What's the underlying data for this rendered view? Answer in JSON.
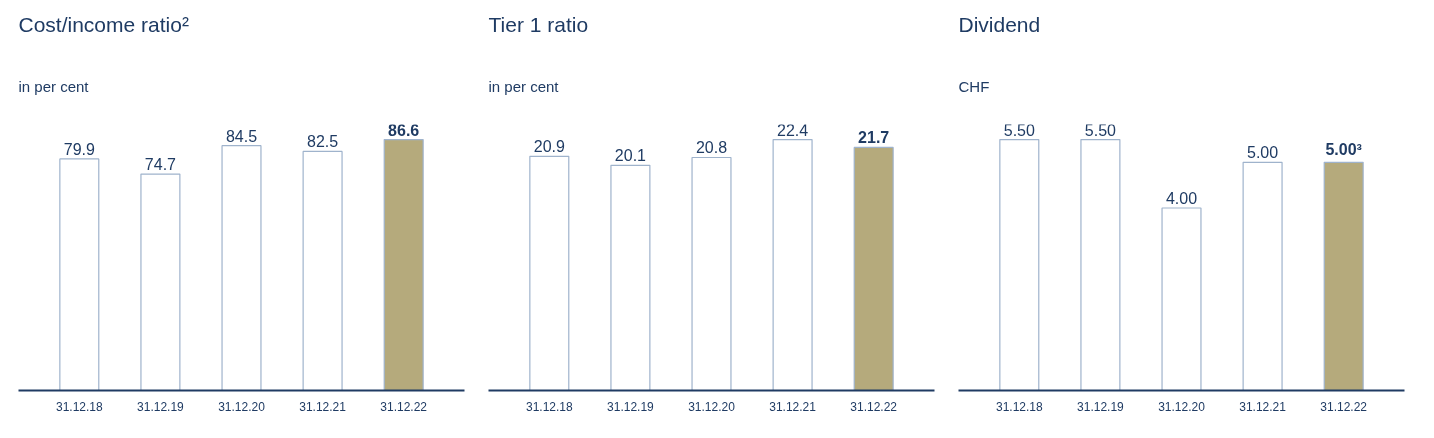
{
  "chart_data": [
    {
      "type": "bar",
      "title": "Cost/income ratio²",
      "subtitle": "in per cent",
      "categories": [
        "31.12.18",
        "31.12.19",
        "31.12.20",
        "31.12.21",
        "31.12.22"
      ],
      "values": [
        79.9,
        74.7,
        84.5,
        82.5,
        86.6
      ],
      "value_labels": [
        "79.9",
        "74.7",
        "84.5",
        "82.5",
        "86.6"
      ],
      "colors": [
        "#ffffff",
        "#ffffff",
        "#ffffff",
        "#ffffff",
        "#b5aa7c"
      ]
    },
    {
      "type": "bar",
      "title": "Tier 1 ratio",
      "subtitle": "in per cent",
      "categories": [
        "31.12.18",
        "31.12.19",
        "31.12.20",
        "31.12.21",
        "31.12.22"
      ],
      "values": [
        20.9,
        20.1,
        20.8,
        22.4,
        21.7
      ],
      "value_labels": [
        "20.9",
        "20.1",
        "20.8",
        "22.4",
        "21.7"
      ],
      "colors": [
        "#ffffff",
        "#ffffff",
        "#ffffff",
        "#ffffff",
        "#b5aa7c"
      ]
    },
    {
      "type": "bar",
      "title": "Dividend",
      "subtitle": "CHF",
      "categories": [
        "31.12.18",
        "31.12.19",
        "31.12.20",
        "31.12.21",
        "31.12.22"
      ],
      "values": [
        5.5,
        5.5,
        4.0,
        5.0,
        5.0
      ],
      "value_labels": [
        "5.50",
        "5.50",
        "4.00",
        "5.00",
        "5.00³"
      ],
      "colors": [
        "#ffffff",
        "#ffffff",
        "#ffffff",
        "#ffffff",
        "#b5aa7c"
      ]
    }
  ]
}
